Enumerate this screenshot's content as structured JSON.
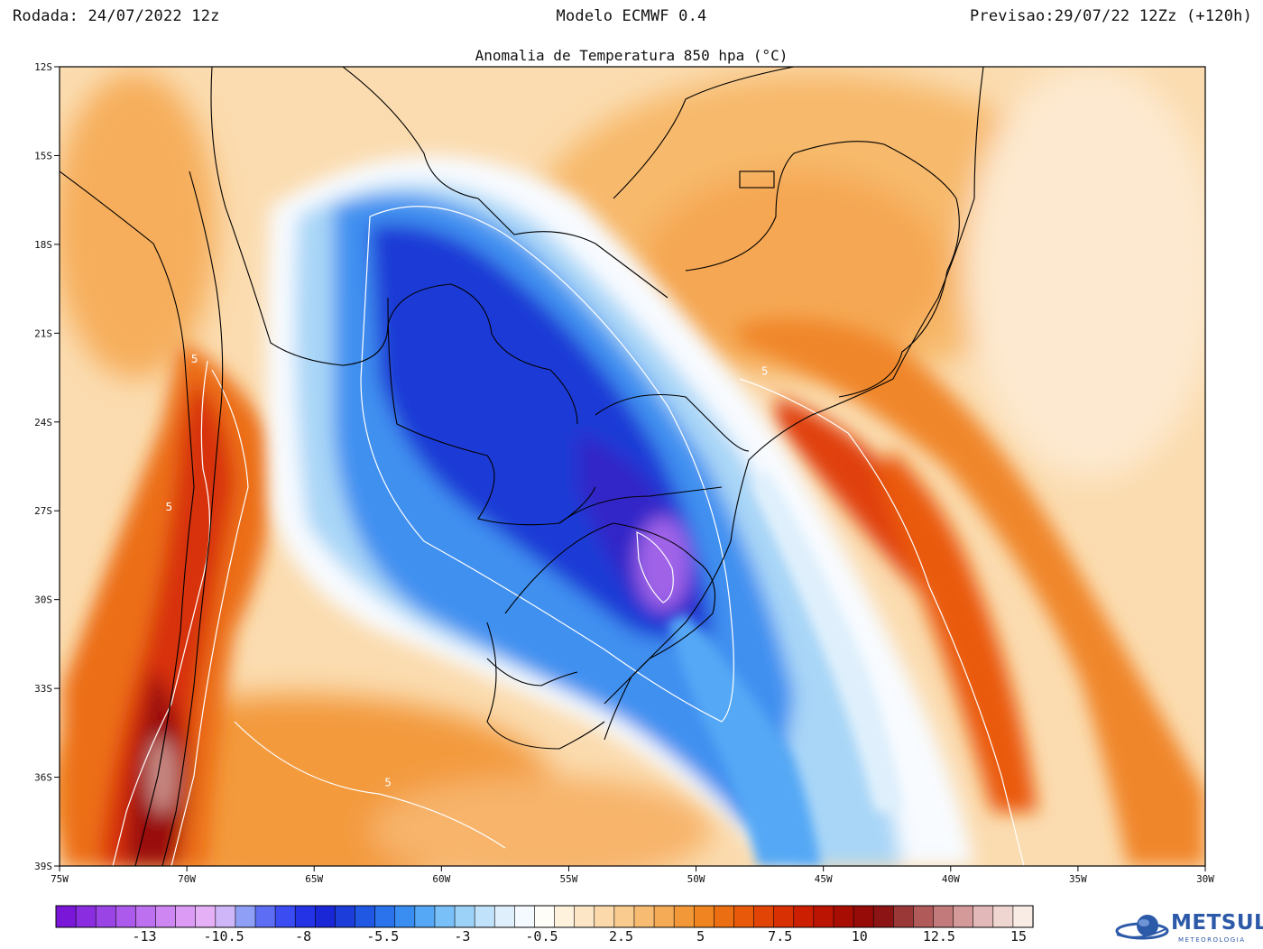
{
  "header": {
    "left": "Rodada: 24/07/2022 12z",
    "center": "Modelo ECMWF 0.4",
    "right": "Previsao:29/07/22 12Zz (+120h)"
  },
  "map_title": "Anomalia de Temperatura 850 hpa (°C)",
  "extent": {
    "lon": [
      -75,
      -30
    ],
    "lat": [
      -12,
      -39
    ]
  },
  "lat_ticks": [
    "12S",
    "15S",
    "18S",
    "21S",
    "24S",
    "27S",
    "30S",
    "33S",
    "36S",
    "39S"
  ],
  "lon_ticks": [
    "75W",
    "70W",
    "65W",
    "60W",
    "55W",
    "50W",
    "45W",
    "40W",
    "35W",
    "30W"
  ],
  "contour_label": "5",
  "contour_labels": [
    {
      "lon": -69.7,
      "lat": -22.0
    },
    {
      "lon": -70.7,
      "lat": -27.0
    },
    {
      "lon": -47.3,
      "lat": -22.4
    },
    {
      "lon": -62.1,
      "lat": -36.3
    }
  ],
  "colorbar": {
    "labels": [
      "-13",
      "-10.5",
      "-8",
      "-5.5",
      "-3",
      "-0.5",
      "2.5",
      "5",
      "7.5",
      "10",
      "12.5",
      "15"
    ],
    "colors": [
      "#7a16d8",
      "#8a2de0",
      "#9b44e6",
      "#ac5aeb",
      "#bd70ef",
      "#cd86f2",
      "#dc9cf5",
      "#e6b0f6",
      "#cfb6f8",
      "#8f9ff5",
      "#5d6df4",
      "#3a4cf2",
      "#2433e6",
      "#1a27d6",
      "#1c3dd9",
      "#2158e3",
      "#2a73ec",
      "#3a8ef2",
      "#55a8f5",
      "#78c0f7",
      "#9cd2f8",
      "#c0e2fa",
      "#dff0fc",
      "#f4faff",
      "#fffdf8",
      "#fff2dd",
      "#fde6c6",
      "#fbd9ab",
      "#f9cb8f",
      "#f7bb72",
      "#f5aa55",
      "#f29838",
      "#ef8420",
      "#ec6e12",
      "#e85a0a",
      "#e24405",
      "#d82f03",
      "#cc1f02",
      "#bc1402",
      "#a80d04",
      "#960a08",
      "#8c1414",
      "#9a3838",
      "#b05a5a",
      "#c27a7a",
      "#d49a9a",
      "#e3b8b8",
      "#f0d6d0",
      "#f8ece4"
    ]
  },
  "colors": {
    "warm_core": "#e03a08",
    "warm_mid": "#f29a3c",
    "warm_light": "#f9cf97",
    "neutral": "#ffffff",
    "cool_light": "#bfe2fa",
    "cool_mid": "#3a8ef2",
    "cool_core": "#1f3ad6",
    "cold_extreme": "#a064e8",
    "brand": "#2d5aa8"
  },
  "logo": {
    "word": "METSUL",
    "sub": "METEOROLOGIA"
  }
}
